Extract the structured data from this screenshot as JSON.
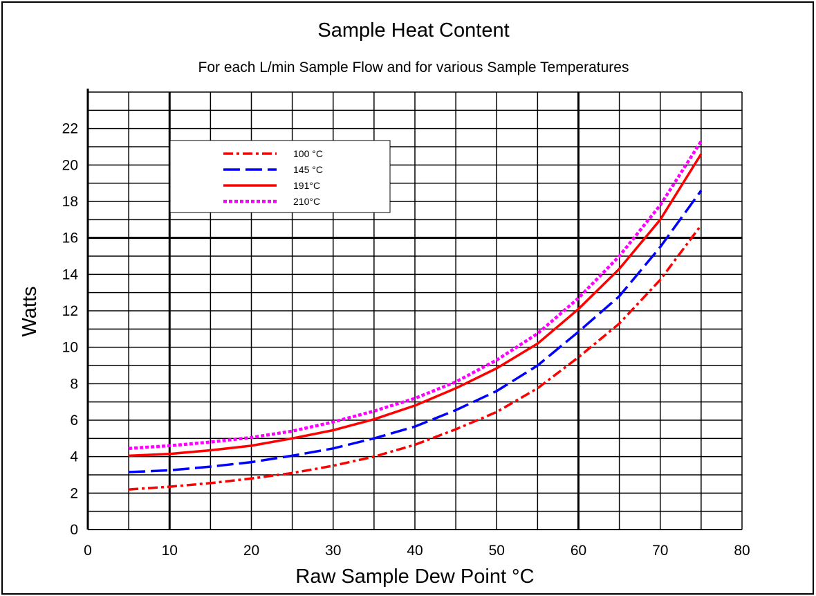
{
  "chart_data": {
    "type": "line",
    "title": "Sample Heat Content",
    "subtitle": "For each L/min Sample Flow and for various Sample Temperatures",
    "xlabel": "Raw Sample Dew Point °C",
    "ylabel": "Watts",
    "xlim": [
      0,
      80
    ],
    "ylim": [
      0,
      24
    ],
    "x_ticks": [
      "0",
      "10",
      "20",
      "30",
      "40",
      "50",
      "60",
      "70",
      "80"
    ],
    "y_ticks": [
      "0",
      "2",
      "4",
      "6",
      "8",
      "10",
      "12",
      "14",
      "16",
      "18",
      "20",
      "22"
    ],
    "grid": true,
    "legend_position": "upper-left",
    "x": [
      5,
      10,
      15,
      20,
      25,
      30,
      35,
      40,
      45,
      50,
      55,
      60,
      65,
      70,
      75
    ],
    "series": [
      {
        "name": "100 °C",
        "color": "#ff0000",
        "style": "dash-dot",
        "values": [
          2.2,
          2.35,
          2.55,
          2.8,
          3.1,
          3.5,
          4.0,
          4.65,
          5.5,
          6.45,
          7.75,
          9.45,
          11.3,
          13.7,
          16.7
        ]
      },
      {
        "name": "145 °C",
        "color": "#0000ff",
        "style": "long-dash",
        "values": [
          3.15,
          3.25,
          3.45,
          3.7,
          4.05,
          4.45,
          5.0,
          5.65,
          6.55,
          7.6,
          9.0,
          10.85,
          12.8,
          15.5,
          18.6
        ]
      },
      {
        "name": "191°C",
        "color": "#ff0000",
        "style": "solid",
        "values": [
          4.05,
          4.15,
          4.35,
          4.6,
          5.0,
          5.45,
          6.05,
          6.8,
          7.75,
          8.85,
          10.2,
          12.1,
          14.3,
          17.0,
          20.6
        ]
      },
      {
        "name": "210°C",
        "color": "#ff00ff",
        "style": "dotted",
        "values": [
          4.45,
          4.6,
          4.8,
          5.05,
          5.4,
          5.9,
          6.5,
          7.2,
          8.1,
          9.3,
          10.75,
          12.7,
          15.0,
          17.8,
          21.3
        ]
      }
    ]
  }
}
